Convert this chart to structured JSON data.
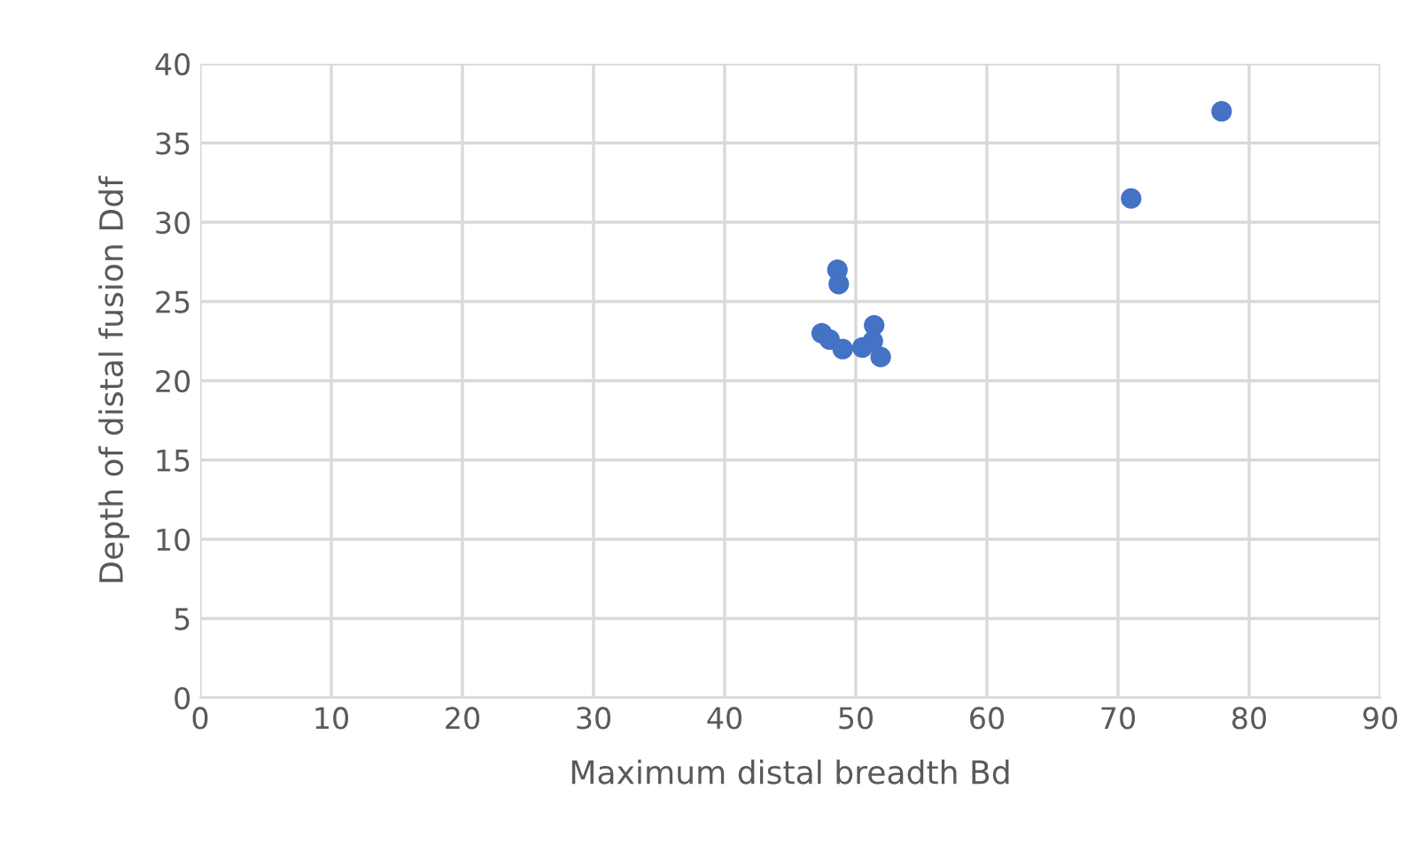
{
  "chart_data": {
    "type": "scatter",
    "xlabel": "Maximum distal breadth Bd",
    "ylabel": "Depth of distal fusion Ddf",
    "x": [
      48.6,
      48.7,
      47.4,
      48.0,
      49.0,
      50.5,
      51.4,
      51.3,
      51.9,
      71.0,
      77.9
    ],
    "series": [
      {
        "color": "#4472c4",
        "values": [
          27.0,
          26.1,
          23.0,
          22.6,
          22.0,
          22.1,
          23.5,
          22.5,
          21.5,
          31.5,
          37.0
        ]
      }
    ],
    "xlim": [
      0,
      90
    ],
    "xticks": [
      0,
      10,
      20,
      30,
      40,
      50,
      60,
      70,
      80,
      90
    ],
    "ylim": [
      0,
      40
    ],
    "yticks": [
      0,
      5,
      10,
      15,
      20,
      25,
      30,
      35,
      40
    ],
    "grid": true,
    "marker": "circle"
  }
}
